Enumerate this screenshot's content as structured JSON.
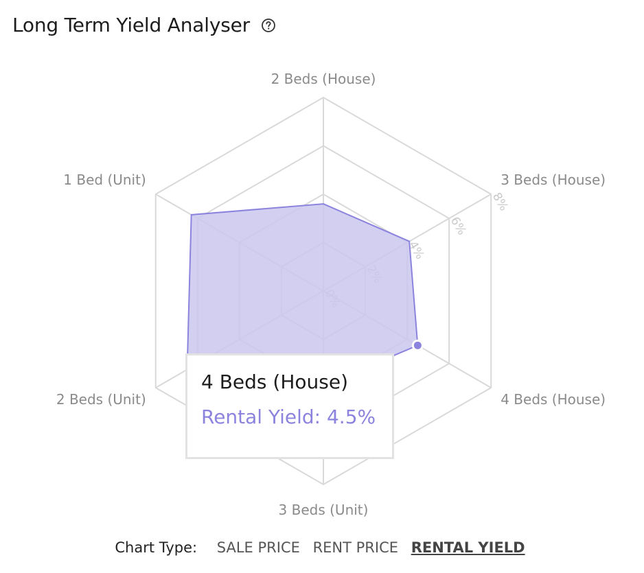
{
  "header": {
    "title": "Long Term Yield Analyser",
    "help_icon": "question-circle-icon"
  },
  "chart_data": {
    "type": "radar",
    "categories": [
      "2 Beds (House)",
      "3 Beds (House)",
      "4 Beds (House)",
      "3 Beds (Unit)",
      "2 Beds (Unit)",
      "1 Bed (Unit)"
    ],
    "series": [
      {
        "values": [
          3.6,
          4.1,
          4.5,
          3.9,
          6.5,
          6.3
        ],
        "color": "#8b83dd",
        "fill": "#cac7ee"
      }
    ],
    "axis_ticks": [
      "0%",
      "2%",
      "4%",
      "6%",
      "8%"
    ],
    "rmax": 8,
    "grid": true
  },
  "tooltip": {
    "title": "4 Beds (House)",
    "series_label": "Rental Yield",
    "value": "4.5%",
    "text": "Rental Yield: 4.5%"
  },
  "footer": {
    "label": "Chart Type:",
    "options": [
      "SALE PRICE",
      "RENT PRICE",
      "RENTAL YIELD"
    ],
    "active": "RENTAL YIELD"
  }
}
